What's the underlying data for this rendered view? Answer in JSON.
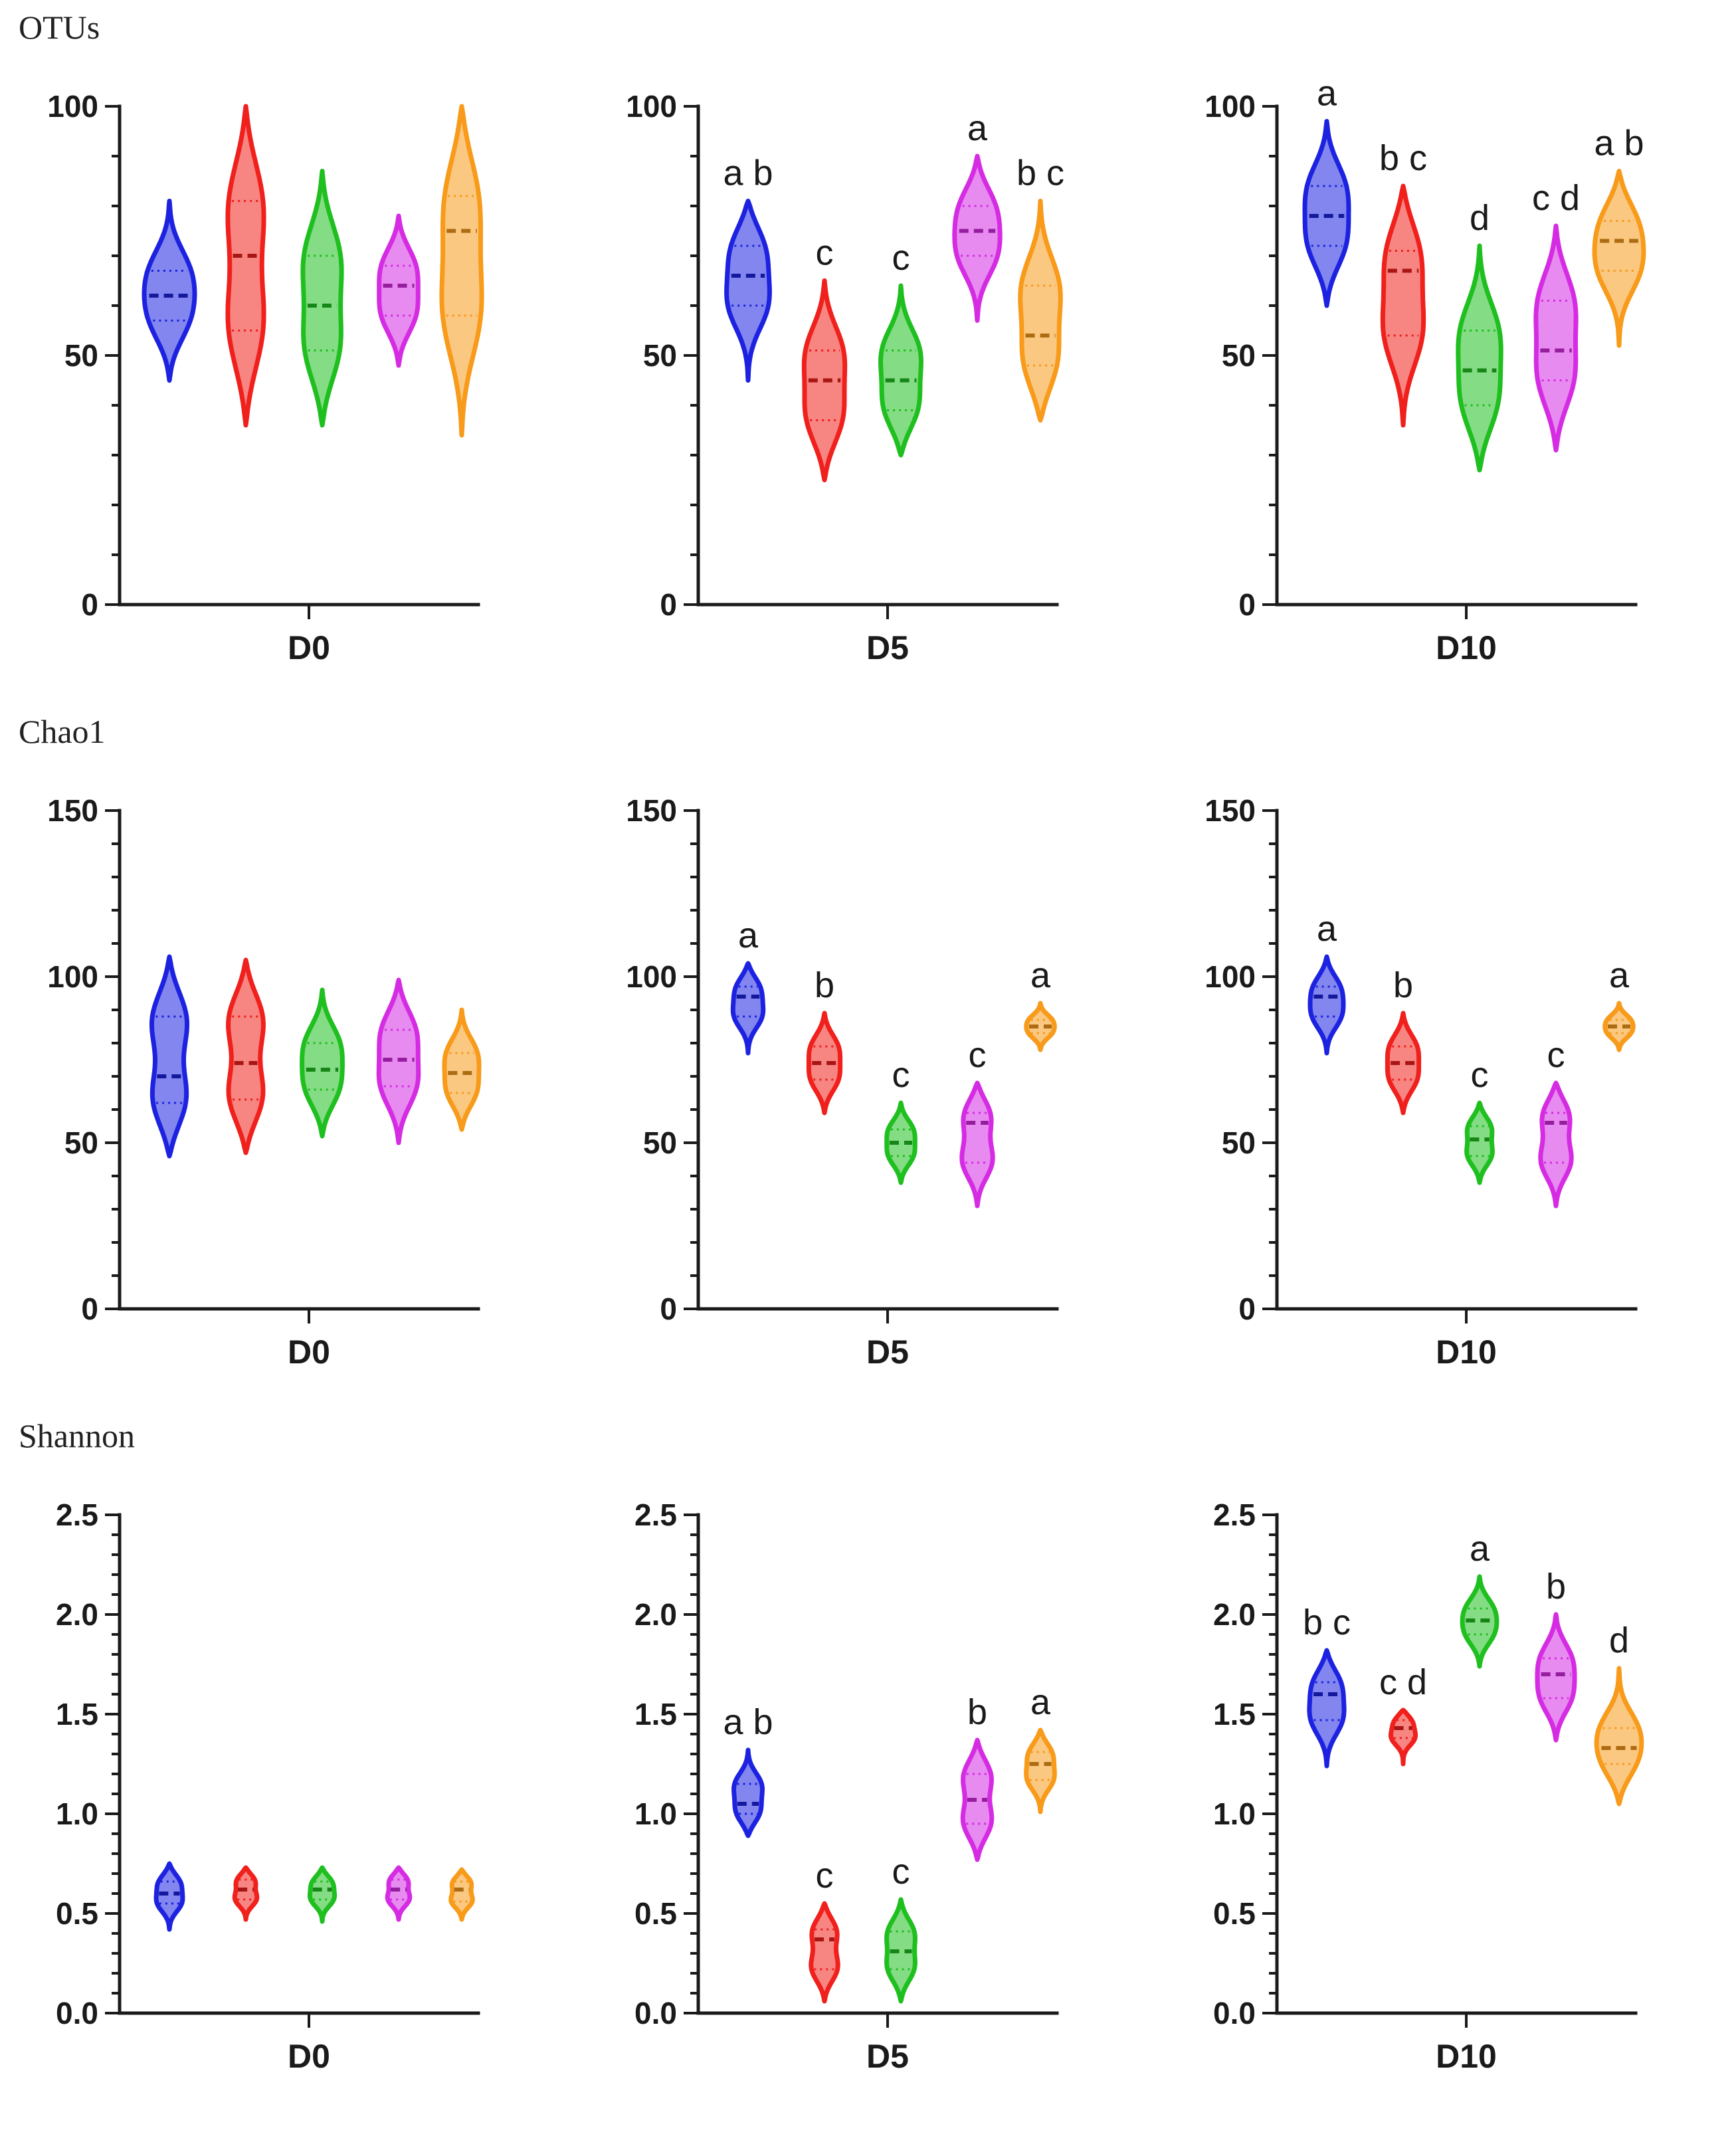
{
  "row_titles": [
    "OTUs",
    "Chao1",
    "Shannon"
  ],
  "colors": {
    "blue": "#1c22e0",
    "red": "#f0201c",
    "green": "#1fbf1f",
    "magenta": "#d52be3",
    "orange": "#f89a1a"
  },
  "group_color_order": [
    "blue",
    "red",
    "green",
    "magenta",
    "orange"
  ],
  "chart_data": [
    {
      "type": "violin",
      "metric": "OTUs",
      "xlabel": "D0",
      "ylim": [
        0,
        100
      ],
      "yticks": [
        0,
        50,
        100
      ],
      "ytick_labels": [
        "0",
        "50",
        "100"
      ],
      "groups": [
        {
          "color": "blue",
          "min": 45,
          "max": 81,
          "median": 62,
          "q1": 57,
          "q3": 67,
          "letter": ""
        },
        {
          "color": "red",
          "min": 36,
          "max": 100,
          "median": 70,
          "q1": 55,
          "q3": 81,
          "letter": ""
        },
        {
          "color": "green",
          "min": 36,
          "max": 87,
          "median": 60,
          "q1": 51,
          "q3": 70,
          "letter": ""
        },
        {
          "color": "magenta",
          "min": 48,
          "max": 78,
          "median": 64,
          "q1": 58,
          "q3": 68,
          "letter": ""
        },
        {
          "color": "orange",
          "min": 34,
          "max": 100,
          "median": 75,
          "q1": 58,
          "q3": 82,
          "letter": ""
        }
      ]
    },
    {
      "type": "violin",
      "metric": "OTUs",
      "xlabel": "D5",
      "ylim": [
        0,
        100
      ],
      "yticks": [
        0,
        50,
        100
      ],
      "ytick_labels": [
        "0",
        "50",
        "100"
      ],
      "groups": [
        {
          "color": "blue",
          "min": 45,
          "max": 81,
          "median": 66,
          "q1": 60,
          "q3": 72,
          "letter": "a b"
        },
        {
          "color": "red",
          "min": 25,
          "max": 65,
          "median": 45,
          "q1": 37,
          "q3": 51,
          "letter": "c"
        },
        {
          "color": "green",
          "min": 30,
          "max": 64,
          "median": 45,
          "q1": 39,
          "q3": 51,
          "letter": "c"
        },
        {
          "color": "magenta",
          "min": 57,
          "max": 90,
          "median": 75,
          "q1": 70,
          "q3": 80,
          "letter": "a"
        },
        {
          "color": "orange",
          "min": 37,
          "max": 81,
          "median": 54,
          "q1": 48,
          "q3": 64,
          "letter": "b c"
        }
      ]
    },
    {
      "type": "violin",
      "metric": "OTUs",
      "xlabel": "D10",
      "ylim": [
        0,
        100
      ],
      "yticks": [
        0,
        50,
        100
      ],
      "ytick_labels": [
        "0",
        "50",
        "100"
      ],
      "groups": [
        {
          "color": "blue",
          "min": 60,
          "max": 97,
          "median": 78,
          "q1": 72,
          "q3": 84,
          "letter": "a"
        },
        {
          "color": "red",
          "min": 36,
          "max": 84,
          "median": 67,
          "q1": 54,
          "q3": 71,
          "letter": "b c"
        },
        {
          "color": "green",
          "min": 27,
          "max": 72,
          "median": 47,
          "q1": 40,
          "q3": 55,
          "letter": "d"
        },
        {
          "color": "magenta",
          "min": 31,
          "max": 76,
          "median": 51,
          "q1": 45,
          "q3": 61,
          "letter": "c d"
        },
        {
          "color": "orange",
          "min": 52,
          "max": 87,
          "median": 73,
          "q1": 67,
          "q3": 77,
          "letter": "a b"
        }
      ]
    },
    {
      "type": "violin",
      "metric": "Chao1",
      "xlabel": "D0",
      "ylim": [
        0,
        150
      ],
      "yticks": [
        0,
        50,
        100,
        150
      ],
      "ytick_labels": [
        "0",
        "50",
        "100",
        "150"
      ],
      "groups": [
        {
          "color": "blue",
          "min": 46,
          "max": 106,
          "median": 70,
          "q1": 62,
          "q3": 88,
          "letter": ""
        },
        {
          "color": "red",
          "min": 47,
          "max": 105,
          "median": 74,
          "q1": 63,
          "q3": 88,
          "letter": ""
        },
        {
          "color": "green",
          "min": 52,
          "max": 96,
          "median": 72,
          "q1": 66,
          "q3": 80,
          "letter": ""
        },
        {
          "color": "magenta",
          "min": 50,
          "max": 99,
          "median": 75,
          "q1": 67,
          "q3": 84,
          "letter": ""
        },
        {
          "color": "orange",
          "min": 54,
          "max": 90,
          "median": 71,
          "q1": 65,
          "q3": 77,
          "letter": ""
        }
      ]
    },
    {
      "type": "violin",
      "metric": "Chao1",
      "xlabel": "D5",
      "ylim": [
        0,
        150
      ],
      "yticks": [
        0,
        50,
        100,
        150
      ],
      "ytick_labels": [
        "0",
        "50",
        "100",
        "150"
      ],
      "groups": [
        {
          "color": "blue",
          "min": 77,
          "max": 104,
          "median": 94,
          "q1": 88,
          "q3": 97,
          "letter": "a"
        },
        {
          "color": "red",
          "min": 59,
          "max": 89,
          "median": 74,
          "q1": 69,
          "q3": 79,
          "letter": "b"
        },
        {
          "color": "green",
          "min": 38,
          "max": 62,
          "median": 50,
          "q1": 46,
          "q3": 54,
          "letter": "c"
        },
        {
          "color": "magenta",
          "min": 31,
          "max": 68,
          "median": 56,
          "q1": 44,
          "q3": 59,
          "letter": "c"
        },
        {
          "color": "orange",
          "min": 78,
          "max": 92,
          "median": 85,
          "q1": 83,
          "q3": 87,
          "letter": "a"
        }
      ]
    },
    {
      "type": "violin",
      "metric": "Chao1",
      "xlabel": "D10",
      "ylim": [
        0,
        150
      ],
      "yticks": [
        0,
        50,
        100,
        150
      ],
      "ytick_labels": [
        "0",
        "50",
        "100",
        "150"
      ],
      "groups": [
        {
          "color": "blue",
          "min": 77,
          "max": 106,
          "median": 94,
          "q1": 88,
          "q3": 97,
          "letter": "a"
        },
        {
          "color": "red",
          "min": 59,
          "max": 89,
          "median": 74,
          "q1": 69,
          "q3": 79,
          "letter": "b"
        },
        {
          "color": "green",
          "min": 38,
          "max": 62,
          "median": 51,
          "q1": 46,
          "q3": 55,
          "letter": "c"
        },
        {
          "color": "magenta",
          "min": 31,
          "max": 68,
          "median": 56,
          "q1": 44,
          "q3": 59,
          "letter": "c"
        },
        {
          "color": "orange",
          "min": 78,
          "max": 92,
          "median": 85,
          "q1": 83,
          "q3": 87,
          "letter": "a"
        }
      ]
    },
    {
      "type": "violin",
      "metric": "Shannon",
      "xlabel": "D0",
      "ylim": [
        0,
        2.5
      ],
      "yticks": [
        0,
        0.5,
        1.0,
        1.5,
        2.0,
        2.5
      ],
      "ytick_labels": [
        "0.0",
        "0.5",
        "1.0",
        "1.5",
        "2.0",
        "2.5"
      ],
      "groups": [
        {
          "color": "blue",
          "min": 0.42,
          "max": 0.75,
          "median": 0.6,
          "q1": 0.55,
          "q3": 0.66,
          "letter": ""
        },
        {
          "color": "red",
          "min": 0.47,
          "max": 0.73,
          "median": 0.62,
          "q1": 0.57,
          "q3": 0.67,
          "letter": ""
        },
        {
          "color": "green",
          "min": 0.46,
          "max": 0.73,
          "median": 0.62,
          "q1": 0.57,
          "q3": 0.66,
          "letter": ""
        },
        {
          "color": "magenta",
          "min": 0.47,
          "max": 0.73,
          "median": 0.62,
          "q1": 0.57,
          "q3": 0.67,
          "letter": ""
        },
        {
          "color": "orange",
          "min": 0.47,
          "max": 0.72,
          "median": 0.62,
          "q1": 0.56,
          "q3": 0.66,
          "letter": ""
        }
      ]
    },
    {
      "type": "violin",
      "metric": "Shannon",
      "xlabel": "D5",
      "ylim": [
        0,
        2.5
      ],
      "yticks": [
        0,
        0.5,
        1.0,
        1.5,
        2.0,
        2.5
      ],
      "ytick_labels": [
        "0.0",
        "0.5",
        "1.0",
        "1.5",
        "2.0",
        "2.5"
      ],
      "groups": [
        {
          "color": "blue",
          "min": 0.89,
          "max": 1.32,
          "median": 1.05,
          "q1": 1.0,
          "q3": 1.15,
          "letter": "a b"
        },
        {
          "color": "red",
          "min": 0.06,
          "max": 0.55,
          "median": 0.37,
          "q1": 0.22,
          "q3": 0.42,
          "letter": "c"
        },
        {
          "color": "green",
          "min": 0.06,
          "max": 0.57,
          "median": 0.31,
          "q1": 0.22,
          "q3": 0.41,
          "letter": "c"
        },
        {
          "color": "magenta",
          "min": 0.77,
          "max": 1.37,
          "median": 1.07,
          "q1": 0.95,
          "q3": 1.2,
          "letter": "b"
        },
        {
          "color": "orange",
          "min": 1.01,
          "max": 1.42,
          "median": 1.25,
          "q1": 1.17,
          "q3": 1.31,
          "letter": "a"
        }
      ]
    },
    {
      "type": "violin",
      "metric": "Shannon",
      "xlabel": "D10",
      "ylim": [
        0,
        2.5
      ],
      "yticks": [
        0,
        0.5,
        1.0,
        1.5,
        2.0,
        2.5
      ],
      "ytick_labels": [
        "0.0",
        "0.5",
        "1.0",
        "1.5",
        "2.0",
        "2.5"
      ],
      "groups": [
        {
          "color": "blue",
          "min": 1.24,
          "max": 1.82,
          "median": 1.6,
          "q1": 1.47,
          "q3": 1.66,
          "letter": "b c"
        },
        {
          "color": "red",
          "min": 1.25,
          "max": 1.52,
          "median": 1.43,
          "q1": 1.38,
          "q3": 1.47,
          "letter": "c d"
        },
        {
          "color": "green",
          "min": 1.74,
          "max": 2.19,
          "median": 1.97,
          "q1": 1.9,
          "q3": 2.03,
          "letter": "a"
        },
        {
          "color": "magenta",
          "min": 1.37,
          "max": 2.0,
          "median": 1.7,
          "q1": 1.58,
          "q3": 1.78,
          "letter": "b"
        },
        {
          "color": "orange",
          "min": 1.05,
          "max": 1.73,
          "median": 1.33,
          "q1": 1.25,
          "q3": 1.43,
          "letter": "d"
        }
      ]
    }
  ]
}
